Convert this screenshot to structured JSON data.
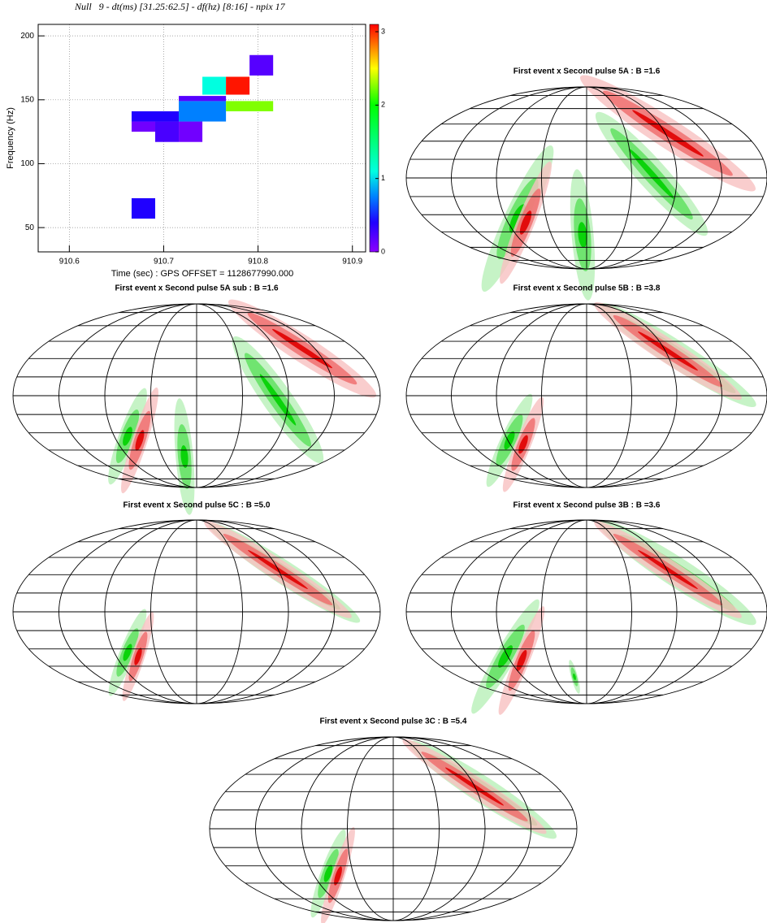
{
  "chart_data": {
    "type": "heatmap",
    "title": "Null   9 - dt(ms) [31.25:62.5] - df(hz) [8:16] - npix 17",
    "x_label": "Time (sec) : GPS OFFSET = 1128677990.000",
    "y_label": "Frequency (Hz)",
    "xlim": [
      910.567,
      910.914
    ],
    "xticks": [
      910.6,
      910.7,
      910.8,
      910.9
    ],
    "ylim": [
      31,
      209
    ],
    "yticks": [
      50,
      100,
      150,
      200
    ],
    "clim": [
      0,
      3.1
    ],
    "cticks": [
      0,
      1,
      2,
      3
    ],
    "grid": true,
    "colorscale": [
      [
        0,
        "#8c00ff"
      ],
      [
        0.4,
        "#2000ff"
      ],
      [
        0.75,
        "#0080ff"
      ],
      [
        1.1,
        "#00ffe0"
      ],
      [
        2,
        "#00ff00"
      ],
      [
        2.5,
        "#ffff00"
      ],
      [
        3.1,
        "#ff0000"
      ]
    ],
    "cells": [
      {
        "x": [
          910.666,
          910.691
        ],
        "y": [
          57,
          73
        ],
        "value": 0.4
      },
      {
        "x": [
          910.666,
          910.691
        ],
        "y": [
          125,
          133
        ],
        "value": 0.1
      },
      {
        "x": [
          910.691,
          910.716
        ],
        "y": [
          117,
          133
        ],
        "value": 0.25
      },
      {
        "x": [
          910.716,
          910.741
        ],
        "y": [
          117,
          133
        ],
        "value": 0.1
      },
      {
        "x": [
          910.666,
          910.716
        ],
        "y": [
          133,
          141
        ],
        "value": 0.4
      },
      {
        "x": [
          910.716,
          910.766
        ],
        "y": [
          133,
          149
        ],
        "value": 0.75
      },
      {
        "x": [
          910.716,
          910.766
        ],
        "y": [
          149,
          153
        ],
        "value": 0.2
      },
      {
        "x": [
          910.741,
          910.766
        ],
        "y": [
          154,
          168
        ],
        "value": 1.1
      },
      {
        "x": [
          910.766,
          910.791
        ],
        "y": [
          154,
          168
        ],
        "value": 3.05
      },
      {
        "x": [
          910.766,
          910.816
        ],
        "y": [
          141,
          149
        ],
        "value": 2.25
      },
      {
        "x": [
          910.791,
          910.816
        ],
        "y": [
          169,
          185
        ],
        "value": 0.2
      }
    ]
  },
  "sky_maps": [
    {
      "title": "First event x Second pulse 5A : B =1.6"
    },
    {
      "title": "First event x Second pulse 5A sub : B =1.6"
    },
    {
      "title": "First event x Second pulse 5B : B =3.8"
    },
    {
      "title": "First event x Second pulse 5C : B =5.0"
    },
    {
      "title": "First event x Second pulse 3B : B =3.6"
    },
    {
      "title": "First event x Second pulse 3C : B =5.4"
    }
  ]
}
